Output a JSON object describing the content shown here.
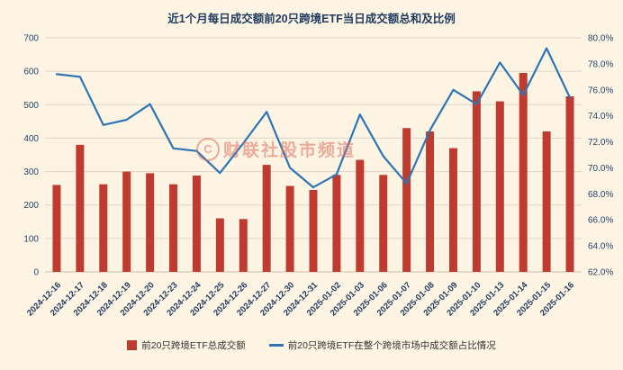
{
  "title": "近1个月每日成交额前20只跨境ETF当日成交额总和及比例",
  "watermark": {
    "logo": "C",
    "text": "财联社股市频道"
  },
  "legend": [
    {
      "label": "前20只跨境ETF总成交额",
      "color": "#bf3b2f",
      "marker": "bar"
    },
    {
      "label": "前20只跨境ETF在整个跨境市场中成交额占比情况",
      "color": "#2e75b6",
      "marker": "line"
    }
  ],
  "chart_data": {
    "type": "bar",
    "title": "近1个月每日成交额前20只跨境ETF当日成交额总和及比例",
    "categories": [
      "2024-12-16",
      "2024-12-17",
      "2024-12-18",
      "2024-12-19",
      "2024-12-20",
      "2024-12-23",
      "2024-12-24",
      "2024-12-25",
      "2024-12-26",
      "2024-12-27",
      "2024-12-30",
      "2024-12-31",
      "2025-01-02",
      "2025-01-03",
      "2025-01-06",
      "2025-01-07",
      "2025-01-08",
      "2025-01-09",
      "2025-01-10",
      "2025-01-13",
      "2025-01-14",
      "2025-01-15",
      "2025-01-16"
    ],
    "series": [
      {
        "name": "前20只跨境ETF总成交额",
        "type": "bar",
        "axis": "left",
        "color": "#bf3b2f",
        "values": [
          260,
          380,
          262,
          300,
          295,
          262,
          288,
          160,
          158,
          320,
          257,
          245,
          290,
          335,
          290,
          430,
          420,
          370,
          540,
          510,
          595,
          420,
          525
        ]
      },
      {
        "name": "前20只跨境ETF在整个跨境市场中成交额占比情况",
        "type": "line",
        "axis": "right",
        "color": "#2e75b6",
        "values": [
          77.2,
          77.0,
          73.3,
          73.7,
          74.9,
          71.5,
          71.3,
          69.6,
          71.9,
          74.3,
          70.0,
          68.5,
          69.5,
          74.1,
          70.9,
          68.8,
          72.9,
          76.0,
          74.9,
          78.1,
          75.6,
          79.2,
          75.4
        ]
      }
    ],
    "left_axis": {
      "min": 0,
      "max": 700,
      "step": 100
    },
    "right_axis": {
      "min": 62.0,
      "max": 80.0,
      "step": 2.0,
      "format": "percent",
      "decimals": 1
    },
    "grid": true,
    "legend_position": "bottom",
    "x_label_rotation": -45
  }
}
